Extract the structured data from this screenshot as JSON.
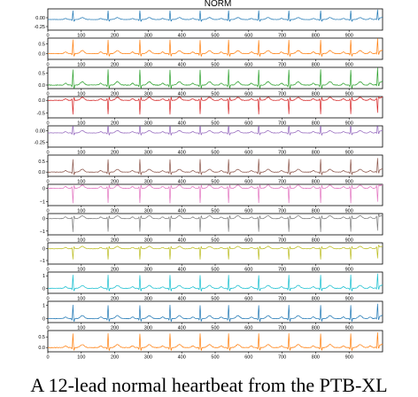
{
  "chart_data": {
    "type": "line",
    "title": "NORM",
    "x_range": [
      0,
      1000
    ],
    "x_ticks": [
      0,
      100,
      200,
      300,
      400,
      500,
      600,
      700,
      800,
      900
    ],
    "r_peaks": [
      75,
      180,
      275,
      365,
      455,
      540,
      630,
      720,
      815,
      905,
      985
    ],
    "leads": [
      {
        "color": "#1f77b4",
        "ylim": [
          -0.35,
          0.25
        ],
        "yticks": [
          0.0,
          -0.25
        ],
        "ytick_labels": [
          "0.00",
          "-0.25"
        ],
        "amp": 0.25,
        "baseline": -0.05,
        "polarity": 1
      },
      {
        "color": "#ff7f0e",
        "ylim": [
          -0.3,
          0.8
        ],
        "yticks": [
          0.5,
          0.0
        ],
        "ytick_labels": [
          "0.5",
          "0.0"
        ],
        "amp": 0.7,
        "baseline": 0.0,
        "polarity": 1
      },
      {
        "color": "#2ca02c",
        "ylim": [
          -0.15,
          0.75
        ],
        "yticks": [
          0.5,
          0.0
        ],
        "ytick_labels": [
          "0.5",
          "0.0"
        ],
        "amp": 0.65,
        "baseline": 0.0,
        "polarity": 1
      },
      {
        "color": "#d62728",
        "ylim": [
          -0.7,
          0.15
        ],
        "yticks": [
          0.0,
          -0.5
        ],
        "ytick_labels": [
          "0.0",
          "-0.5"
        ],
        "amp": 0.55,
        "baseline": 0.0,
        "polarity": -1
      },
      {
        "color": "#9467bd",
        "ylim": [
          -0.35,
          0.1
        ],
        "yticks": [
          0.0,
          -0.25
        ],
        "ytick_labels": [
          "0.00",
          "-0.25"
        ],
        "amp": 0.22,
        "baseline": -0.05,
        "polarity": 1
      },
      {
        "color": "#8c564b",
        "ylim": [
          -0.2,
          0.8
        ],
        "yticks": [
          0.5,
          0.0
        ],
        "ytick_labels": [
          "0.5",
          "0.0"
        ],
        "amp": 0.6,
        "baseline": 0.0,
        "polarity": 1
      },
      {
        "color": "#e377c2",
        "ylim": [
          -1.3,
          0.3
        ],
        "yticks": [
          0,
          -1
        ],
        "ytick_labels": [
          "0",
          "−1"
        ],
        "amp": 1.1,
        "baseline": 0.0,
        "polarity": -1
      },
      {
        "color": "#7f7f7f",
        "ylim": [
          -1.3,
          0.4
        ],
        "yticks": [
          0,
          -1
        ],
        "ytick_labels": [
          "0",
          "−1"
        ],
        "amp": 1.05,
        "baseline": 0.0,
        "polarity": -1
      },
      {
        "color": "#bcbd22",
        "ylim": [
          -1.3,
          0.5
        ],
        "yticks": [
          0,
          -1
        ],
        "ytick_labels": [
          "0",
          "−1"
        ],
        "amp": 0.9,
        "baseline": 0.0,
        "polarity": -1
      },
      {
        "color": "#17becf",
        "ylim": [
          -0.4,
          1.3
        ],
        "yticks": [
          1,
          0
        ],
        "ytick_labels": [
          "1",
          "0"
        ],
        "amp": 1.05,
        "baseline": 0.0,
        "polarity": 1
      },
      {
        "color": "#1f77b4",
        "ylim": [
          -0.3,
          1.3
        ],
        "yticks": [
          1,
          0
        ],
        "ytick_labels": [
          "1",
          "0"
        ],
        "amp": 1.0,
        "baseline": 0.0,
        "polarity": 1
      },
      {
        "color": "#ff7f0e",
        "ylim": [
          -0.2,
          0.8
        ],
        "yticks": [
          0.5,
          0.0
        ],
        "ytick_labels": [
          "0.5",
          "0.0"
        ],
        "amp": 0.65,
        "baseline": 0.0,
        "polarity": 1
      }
    ]
  },
  "caption": "A 12-lead normal heartbeat from the PTB-XL"
}
